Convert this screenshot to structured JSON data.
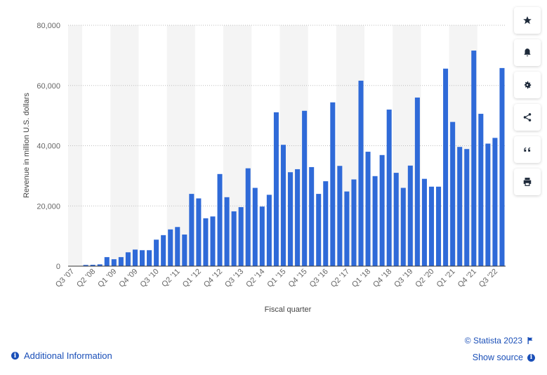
{
  "chart_data": {
    "type": "bar",
    "ylabel": "Revenue in million U.S. dollars",
    "xlabel": "Fiscal quarter",
    "ylim": [
      0,
      80000
    ],
    "yticks": [
      0,
      20000,
      40000,
      60000,
      80000
    ],
    "ytick_labels": [
      "0",
      "20,000",
      "40,000",
      "60,000",
      "80,000"
    ],
    "grid": "horizontal dotted",
    "alternating_year_bands": true,
    "bar_color": "#2f6ad8",
    "categories": [
      "Q3 '07",
      "Q4 '07",
      "Q1 '08",
      "Q2 '08",
      "Q3 '08",
      "Q4 '08",
      "Q1 '09",
      "Q2 '09",
      "Q3 '09",
      "Q4 '09",
      "Q1 '10",
      "Q2 '10",
      "Q3 '10",
      "Q4 '10",
      "Q1 '11",
      "Q2 '11",
      "Q3 '11",
      "Q4 '11",
      "Q1 '12",
      "Q2 '12",
      "Q3 '12",
      "Q4 '12",
      "Q1 '13",
      "Q2 '13",
      "Q3 '13",
      "Q4 '13",
      "Q1 '14",
      "Q2 '14",
      "Q3 '14",
      "Q4 '14",
      "Q1 '15",
      "Q2 '15",
      "Q3 '15",
      "Q4 '15",
      "Q1 '16",
      "Q2 '16",
      "Q3 '16",
      "Q4 '16",
      "Q1 '17",
      "Q2 '17",
      "Q3 '17",
      "Q4 '17",
      "Q1 '18",
      "Q2 '18",
      "Q3 '18",
      "Q4 '18",
      "Q1 '19",
      "Q2 '19",
      "Q3 '19",
      "Q4 '19",
      "Q1 '20",
      "Q2 '20",
      "Q3 '20",
      "Q4 '20",
      "Q1 '21",
      "Q2 '21",
      "Q3 '21",
      "Q4 '21",
      "Q1 '22",
      "Q2 '22",
      "Q3 '22",
      "Q4 '22"
    ],
    "visible_tick_labels": [
      "Q3 '07",
      "Q2 '08",
      "Q1 '09",
      "Q4 '09",
      "Q3 '10",
      "Q2 '11",
      "Q1 '12",
      "Q4 '12",
      "Q3 '13",
      "Q2 '14",
      "Q1 '15",
      "Q4 '15",
      "Q3 '16",
      "Q2 '17",
      "Q1 '18",
      "Q4 '18",
      "Q3 '19",
      "Q2 '20",
      "Q1 '21",
      "Q4 '21",
      "Q3 '22"
    ],
    "values": [
      0,
      0,
      400,
      450,
      600,
      3000,
      2300,
      3000,
      4600,
      5500,
      5300,
      5300,
      8800,
      10300,
      12200,
      13000,
      10500,
      24000,
      22500,
      15900,
      16500,
      30600,
      22900,
      18200,
      19600,
      32500,
      26000,
      19800,
      23700,
      51100,
      40300,
      31200,
      32200,
      51600,
      32900,
      24000,
      28200,
      54400,
      33300,
      24800,
      28800,
      61600,
      38000,
      29900,
      36900,
      52000,
      31000,
      26000,
      33400,
      56000,
      29000,
      26400,
      26400,
      65600,
      47900,
      39600,
      38900,
      71600,
      50600,
      40700,
      42600,
      65800
    ]
  },
  "toolbar": {
    "icons": [
      "star-icon",
      "bell-icon",
      "gear-icon",
      "share-icon",
      "quote-icon",
      "print-icon"
    ]
  },
  "footer": {
    "additional_info": "Additional Information",
    "copyright": "© Statista 2023",
    "show_source": "Show source",
    "info_symbol": "i"
  }
}
